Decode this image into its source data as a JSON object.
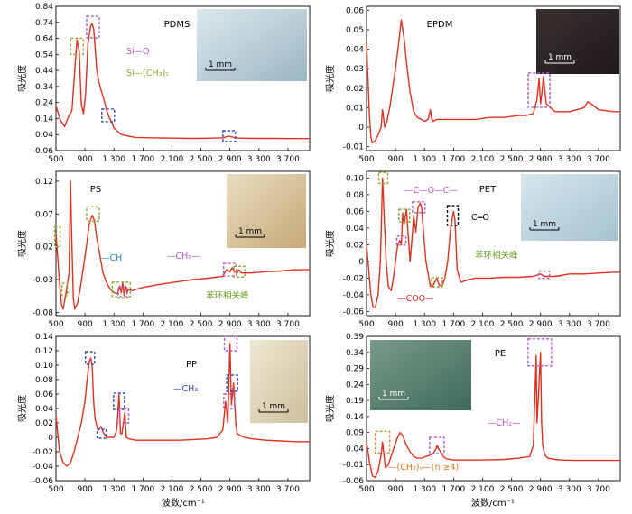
{
  "figure": {
    "xlabel": "波数/cm⁻¹",
    "ylabel": "吸光度",
    "scale_label": "1 mm"
  },
  "colors": {
    "line": "#e0301e",
    "purple": "#b05ac8",
    "green": "#8aa832",
    "blue": "#3a4ab0",
    "orange": "#e08a30",
    "black": "#000000",
    "text_green": "#6a9a20",
    "text_purple": "#9a3aa8",
    "text_blue": "#2a8ab0",
    "text_orange": "#d07a20",
    "text_maroon": "#7a2a8a"
  },
  "chart_data": [
    {
      "type": "line",
      "title": "PDMS",
      "xticks": [
        "500",
        "900",
        "1 300",
        "1 700",
        "2 100",
        "2 500",
        "2 900",
        "3 300",
        "3 700"
      ],
      "yticks": [
        "0.84",
        "0.74",
        "0.64",
        "0.54",
        "0.44",
        "0.34",
        "0.24",
        "0.14",
        "0.04",
        "-0.06"
      ],
      "xlim": [
        500,
        4000
      ],
      "ylim": [
        -0.06,
        0.84
      ],
      "x": [
        500,
        560,
        620,
        680,
        720,
        760,
        790,
        820,
        850,
        880,
        910,
        940,
        980,
        1000,
        1020,
        1040,
        1060,
        1090,
        1120,
        1160,
        1200,
        1240,
        1270,
        1300,
        1350,
        1400,
        1500,
        1600,
        1800,
        2000,
        2200,
        2400,
        2600,
        2800,
        2880,
        2960,
        3000,
        3100,
        3300,
        3500,
        3700,
        3900,
        4000
      ],
      "y": [
        0.22,
        0.13,
        0.09,
        0.16,
        0.19,
        0.45,
        0.63,
        0.56,
        0.23,
        0.17,
        0.3,
        0.6,
        0.72,
        0.73,
        0.7,
        0.58,
        0.45,
        0.37,
        0.32,
        0.26,
        0.19,
        0.14,
        0.12,
        0.08,
        0.06,
        0.04,
        0.03,
        0.022,
        0.02,
        0.018,
        0.017,
        0.016,
        0.017,
        0.02,
        0.03,
        0.022,
        0.018,
        0.017,
        0.016,
        0.016,
        0.015,
        0.015,
        0.015
      ],
      "annotations": [
        {
          "text": "Si—O",
          "color": "purple"
        },
        {
          "text": "Si—(CH₃)₂",
          "color": "green"
        }
      ]
    },
    {
      "type": "line",
      "title": "EPDM",
      "xticks": [
        "500",
        "900",
        "1 300",
        "1 700",
        "2 100",
        "2 500",
        "2 900",
        "3 300",
        "3 700"
      ],
      "yticks": [
        "0.06",
        "0.05",
        "0.04",
        "0.03",
        "0.02",
        "0.01",
        "0",
        "-0.01"
      ],
      "xlim": [
        500,
        4000
      ],
      "ylim": [
        -0.012,
        0.062
      ],
      "x": [
        500,
        520,
        540,
        560,
        580,
        620,
        660,
        700,
        720,
        750,
        780,
        820,
        860,
        900,
        940,
        980,
        1020,
        1060,
        1100,
        1150,
        1200,
        1260,
        1300,
        1350,
        1380,
        1400,
        1420,
        1460,
        1500,
        1600,
        1800,
        2000,
        2200,
        2400,
        2600,
        2700,
        2800,
        2850,
        2880,
        2900,
        2920,
        2940,
        2980,
        3100,
        3300,
        3500,
        3550,
        3600,
        3700,
        3900,
        4000
      ],
      "y": [
        0.043,
        0.025,
        0.006,
        -0.005,
        -0.008,
        -0.007,
        -0.004,
        0.0,
        0.009,
        0.0,
        0.003,
        0.01,
        0.02,
        0.03,
        0.042,
        0.055,
        0.045,
        0.03,
        0.018,
        0.008,
        0.005,
        0.004,
        0.003,
        0.004,
        0.009,
        0.004,
        0.003,
        0.004,
        0.004,
        0.004,
        0.004,
        0.004,
        0.005,
        0.005,
        0.006,
        0.006,
        0.007,
        0.014,
        0.025,
        0.012,
        0.018,
        0.026,
        0.012,
        0.008,
        0.008,
        0.01,
        0.013,
        0.012,
        0.009,
        0.008,
        0.008
      ],
      "annotations": []
    },
    {
      "type": "line",
      "title": "PS",
      "xticks": [
        "500",
        "900",
        "1 300",
        "1 700",
        "2 100",
        "2 500",
        "2 900",
        "3 300",
        "3 700"
      ],
      "yticks": [
        "0.12",
        "0.07",
        "0.02",
        "-0.03",
        "-0.08"
      ],
      "xlim": [
        500,
        4000
      ],
      "ylim": [
        -0.085,
        0.135
      ],
      "x": [
        500,
        520,
        540,
        560,
        580,
        600,
        640,
        680,
        700,
        720,
        740,
        760,
        800,
        840,
        880,
        920,
        960,
        1000,
        1030,
        1060,
        1100,
        1150,
        1200,
        1250,
        1300,
        1350,
        1380,
        1400,
        1420,
        1440,
        1460,
        1480,
        1500,
        1550,
        1600,
        1700,
        1800,
        1900,
        2000,
        2200,
        2400,
        2600,
        2800,
        2850,
        2900,
        2930,
        2960,
        3000,
        3020,
        3060,
        3100,
        3200,
        3400,
        3600,
        3800,
        4000
      ],
      "y": [
        0.04,
        0.01,
        -0.02,
        -0.05,
        -0.07,
        -0.075,
        -0.05,
        -0.02,
        0.12,
        0.02,
        -0.06,
        -0.075,
        -0.065,
        -0.04,
        -0.01,
        0.02,
        0.055,
        0.068,
        0.06,
        0.035,
        0.01,
        -0.02,
        -0.035,
        -0.045,
        -0.05,
        -0.052,
        -0.04,
        -0.05,
        -0.035,
        -0.055,
        -0.04,
        -0.05,
        -0.045,
        -0.047,
        -0.045,
        -0.042,
        -0.04,
        -0.038,
        -0.036,
        -0.033,
        -0.03,
        -0.028,
        -0.025,
        -0.015,
        -0.018,
        -0.012,
        -0.017,
        -0.02,
        -0.015,
        -0.02,
        -0.02,
        -0.02,
        -0.018,
        -0.017,
        -0.015,
        -0.015
      ],
      "annotations": [
        {
          "text": "—CH",
          "color": "text_blue"
        },
        {
          "text": "—CH₂—",
          "color": "purple"
        },
        {
          "text": "苯环相关峰",
          "color": "text_green"
        }
      ]
    },
    {
      "type": "line",
      "title": "PET",
      "xticks": [
        "500",
        "900",
        "1 300",
        "1 700",
        "2 100",
        "2 500",
        "2 900",
        "3 300",
        "3 700"
      ],
      "yticks": [
        "0.10",
        "0.08",
        "0.06",
        "0.04",
        "0.02",
        "0",
        "-0.02",
        "-0.04",
        "-0.06"
      ],
      "xlim": [
        500,
        4000
      ],
      "ylim": [
        -0.065,
        0.108
      ],
      "x": [
        500,
        530,
        560,
        590,
        620,
        660,
        690,
        720,
        740,
        770,
        800,
        840,
        870,
        900,
        930,
        960,
        980,
        1000,
        1020,
        1050,
        1080,
        1100,
        1120,
        1150,
        1180,
        1210,
        1240,
        1260,
        1290,
        1320,
        1350,
        1380,
        1410,
        1440,
        1470,
        1500,
        1540,
        1580,
        1620,
        1660,
        1700,
        1720,
        1750,
        1800,
        1900,
        2000,
        2200,
        2400,
        2600,
        2800,
        2900,
        2950,
        3000,
        3100,
        3300,
        3500,
        3700,
        3900,
        4000
      ],
      "y": [
        0.02,
        -0.01,
        -0.04,
        -0.055,
        -0.055,
        -0.04,
        0.0,
        0.1,
        0.06,
        0.0,
        -0.03,
        -0.035,
        -0.02,
        0.0,
        0.02,
        0.025,
        0.02,
        0.058,
        0.045,
        0.062,
        0.025,
        0.0,
        0.02,
        0.055,
        0.035,
        0.065,
        0.07,
        0.065,
        0.03,
        0.0,
        -0.015,
        -0.03,
        -0.03,
        -0.025,
        -0.02,
        -0.028,
        -0.03,
        -0.02,
        0.0,
        0.04,
        0.06,
        0.05,
        -0.01,
        -0.025,
        -0.022,
        -0.02,
        -0.02,
        -0.019,
        -0.019,
        -0.018,
        -0.015,
        -0.018,
        -0.018,
        -0.018,
        -0.015,
        -0.015,
        -0.014,
        -0.013,
        -0.013
      ],
      "annotations": [
        {
          "text": "—C—O—C—",
          "color": "purple"
        },
        {
          "text": "C═O",
          "color": "black"
        },
        {
          "text": "苯环相关峰",
          "color": "text_green"
        },
        {
          "text": "—COO—",
          "color": "line"
        }
      ]
    },
    {
      "type": "line",
      "title": "PP",
      "xticks": [
        "500",
        "900",
        "1 300",
        "1 700",
        "2 100",
        "2 500",
        "2 900",
        "3 300",
        "3 700"
      ],
      "yticks": [
        "0.14",
        "0.12",
        "0.10",
        "0.08",
        "0.06",
        "0.04",
        "0.02",
        "0",
        "-0.02",
        "-0.04",
        "-0.06"
      ],
      "xlim": [
        500,
        4000
      ],
      "ylim": [
        -0.06,
        0.14
      ],
      "x": [
        500,
        550,
        600,
        650,
        700,
        750,
        800,
        850,
        900,
        930,
        960,
        980,
        1000,
        1020,
        1040,
        1080,
        1120,
        1160,
        1200,
        1260,
        1300,
        1340,
        1370,
        1390,
        1410,
        1430,
        1450,
        1470,
        1500,
        1600,
        1800,
        2000,
        2200,
        2400,
        2600,
        2720,
        2800,
        2840,
        2870,
        2900,
        2920,
        2950,
        2980,
        3000,
        3100,
        3200,
        3300,
        3400,
        3600,
        3800,
        4000
      ],
      "y": [
        0.03,
        -0.02,
        -0.035,
        -0.04,
        -0.035,
        -0.02,
        0.0,
        0.02,
        0.05,
        0.08,
        0.105,
        0.11,
        0.1,
        0.05,
        0.025,
        0.01,
        0.015,
        0.005,
        0.0,
        0.0,
        0.0,
        0.01,
        0.06,
        0.005,
        0.005,
        0.02,
        0.035,
        0.0,
        -0.002,
        -0.004,
        -0.004,
        -0.004,
        -0.004,
        -0.003,
        -0.002,
        0.0,
        0.01,
        0.05,
        0.02,
        0.13,
        0.045,
        0.075,
        0.02,
        0.005,
        0.0,
        -0.002,
        -0.003,
        -0.004,
        -0.005,
        -0.006,
        -0.006
      ],
      "annotations": [
        {
          "text": "—CH₃",
          "color": "blue"
        }
      ]
    },
    {
      "type": "line",
      "title": "PE",
      "xticks": [
        "500",
        "900",
        "1 300",
        "1 700",
        "2 100",
        "2 500",
        "2 900",
        "3 300",
        "3 700"
      ],
      "yticks": [
        "0.39",
        "0.34",
        "0.29",
        "0.24",
        "0.19",
        "0.14",
        "0.09",
        "0.04",
        "-0.01",
        "-0.06"
      ],
      "xlim": [
        500,
        4000
      ],
      "ylim": [
        -0.06,
        0.39
      ],
      "x": [
        500,
        540,
        580,
        620,
        660,
        700,
        720,
        740,
        760,
        800,
        860,
        920,
        960,
        1000,
        1050,
        1100,
        1150,
        1200,
        1260,
        1320,
        1380,
        1420,
        1460,
        1475,
        1490,
        1520,
        1560,
        1600,
        1700,
        1800,
        2000,
        2200,
        2400,
        2600,
        2750,
        2800,
        2840,
        2850,
        2870,
        2900,
        2915,
        2930,
        2960,
        3000,
        3100,
        3200,
        3400,
        3600,
        3800,
        4000
      ],
      "y": [
        0.06,
        0.0,
        -0.045,
        -0.05,
        -0.03,
        0.02,
        0.06,
        0.02,
        -0.02,
        -0.01,
        0.03,
        0.07,
        0.09,
        0.08,
        0.05,
        0.03,
        0.015,
        0.01,
        0.01,
        0.015,
        0.02,
        0.025,
        0.04,
        0.05,
        0.04,
        0.03,
        0.015,
        0.008,
        0.004,
        0.004,
        0.004,
        0.005,
        0.006,
        0.01,
        0.015,
        0.05,
        0.33,
        0.12,
        0.2,
        0.34,
        0.12,
        0.05,
        0.02,
        0.01,
        0.006,
        0.004,
        0.003,
        0.003,
        0.003,
        0.003
      ],
      "annotations": [
        {
          "text": "—CH₂—",
          "color": "purple"
        },
        {
          "text": "—(CH₂)ₙ—(n ≥4)",
          "color": "text_orange"
        }
      ]
    }
  ]
}
